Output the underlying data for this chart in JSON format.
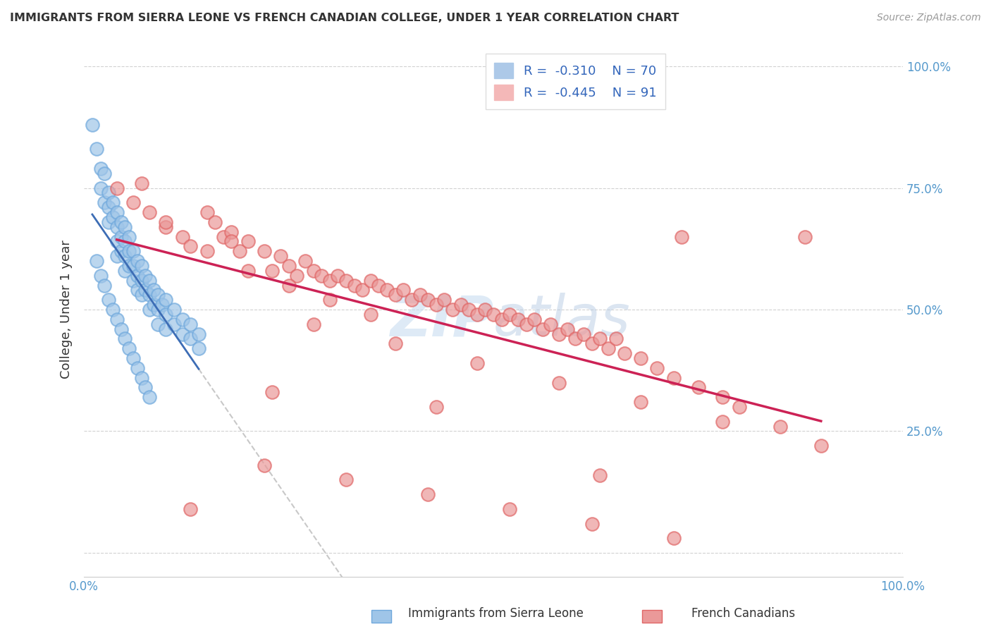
{
  "title": "IMMIGRANTS FROM SIERRA LEONE VS FRENCH CANADIAN COLLEGE, UNDER 1 YEAR CORRELATION CHART",
  "source": "Source: ZipAtlas.com",
  "ylabel": "College, Under 1 year",
  "blue_R": -0.31,
  "blue_N": 70,
  "pink_R": -0.445,
  "pink_N": 91,
  "blue_color": "#9fc5e8",
  "blue_edge_color": "#6fa8dc",
  "pink_color": "#ea9999",
  "pink_edge_color": "#e06666",
  "blue_label": "Immigrants from Sierra Leone",
  "pink_label": "French Canadians",
  "watermark": "ZIPatlas",
  "blue_line_color": "#3d6db5",
  "pink_line_color": "#cc2255",
  "dashed_line_color": "#bbbbbb",
  "blue_scatter_x": [
    0.01,
    0.015,
    0.02,
    0.02,
    0.025,
    0.025,
    0.03,
    0.03,
    0.03,
    0.035,
    0.035,
    0.04,
    0.04,
    0.04,
    0.04,
    0.045,
    0.045,
    0.045,
    0.05,
    0.05,
    0.05,
    0.05,
    0.055,
    0.055,
    0.055,
    0.06,
    0.06,
    0.06,
    0.065,
    0.065,
    0.065,
    0.07,
    0.07,
    0.07,
    0.075,
    0.075,
    0.08,
    0.08,
    0.08,
    0.085,
    0.085,
    0.09,
    0.09,
    0.09,
    0.095,
    0.1,
    0.1,
    0.1,
    0.11,
    0.11,
    0.12,
    0.12,
    0.13,
    0.13,
    0.14,
    0.14,
    0.015,
    0.02,
    0.025,
    0.03,
    0.035,
    0.04,
    0.045,
    0.05,
    0.055,
    0.06,
    0.065,
    0.07,
    0.075,
    0.08
  ],
  "blue_scatter_y": [
    0.88,
    0.83,
    0.79,
    0.75,
    0.78,
    0.72,
    0.74,
    0.71,
    0.68,
    0.72,
    0.69,
    0.7,
    0.67,
    0.64,
    0.61,
    0.68,
    0.65,
    0.62,
    0.67,
    0.64,
    0.61,
    0.58,
    0.65,
    0.62,
    0.59,
    0.62,
    0.59,
    0.56,
    0.6,
    0.57,
    0.54,
    0.59,
    0.56,
    0.53,
    0.57,
    0.54,
    0.56,
    0.53,
    0.5,
    0.54,
    0.51,
    0.53,
    0.5,
    0.47,
    0.51,
    0.52,
    0.49,
    0.46,
    0.5,
    0.47,
    0.48,
    0.45,
    0.47,
    0.44,
    0.45,
    0.42,
    0.6,
    0.57,
    0.55,
    0.52,
    0.5,
    0.48,
    0.46,
    0.44,
    0.42,
    0.4,
    0.38,
    0.36,
    0.34,
    0.32
  ],
  "pink_scatter_x": [
    0.04,
    0.06,
    0.08,
    0.1,
    0.12,
    0.13,
    0.15,
    0.16,
    0.17,
    0.18,
    0.19,
    0.2,
    0.22,
    0.23,
    0.24,
    0.25,
    0.26,
    0.27,
    0.28,
    0.29,
    0.3,
    0.31,
    0.32,
    0.33,
    0.34,
    0.35,
    0.36,
    0.37,
    0.38,
    0.39,
    0.4,
    0.41,
    0.42,
    0.43,
    0.44,
    0.45,
    0.46,
    0.47,
    0.48,
    0.49,
    0.5,
    0.51,
    0.52,
    0.53,
    0.54,
    0.55,
    0.56,
    0.57,
    0.58,
    0.59,
    0.6,
    0.61,
    0.62,
    0.63,
    0.64,
    0.65,
    0.66,
    0.68,
    0.7,
    0.72,
    0.75,
    0.78,
    0.8,
    0.85,
    0.9,
    0.15,
    0.2,
    0.25,
    0.3,
    0.35,
    0.1,
    0.18,
    0.28,
    0.38,
    0.48,
    0.58,
    0.68,
    0.78,
    0.88,
    0.22,
    0.32,
    0.42,
    0.52,
    0.62,
    0.72,
    0.07,
    0.13,
    0.23,
    0.43,
    0.63,
    0.73
  ],
  "pink_scatter_y": [
    0.75,
    0.72,
    0.7,
    0.67,
    0.65,
    0.63,
    0.7,
    0.68,
    0.65,
    0.66,
    0.62,
    0.64,
    0.62,
    0.58,
    0.61,
    0.59,
    0.57,
    0.6,
    0.58,
    0.57,
    0.56,
    0.57,
    0.56,
    0.55,
    0.54,
    0.56,
    0.55,
    0.54,
    0.53,
    0.54,
    0.52,
    0.53,
    0.52,
    0.51,
    0.52,
    0.5,
    0.51,
    0.5,
    0.49,
    0.5,
    0.49,
    0.48,
    0.49,
    0.48,
    0.47,
    0.48,
    0.46,
    0.47,
    0.45,
    0.46,
    0.44,
    0.45,
    0.43,
    0.44,
    0.42,
    0.44,
    0.41,
    0.4,
    0.38,
    0.36,
    0.34,
    0.32,
    0.3,
    0.26,
    0.22,
    0.62,
    0.58,
    0.55,
    0.52,
    0.49,
    0.68,
    0.64,
    0.47,
    0.43,
    0.39,
    0.35,
    0.31,
    0.27,
    0.65,
    0.18,
    0.15,
    0.12,
    0.09,
    0.06,
    0.03,
    0.76,
    0.09,
    0.33,
    0.3,
    0.16,
    0.65
  ]
}
